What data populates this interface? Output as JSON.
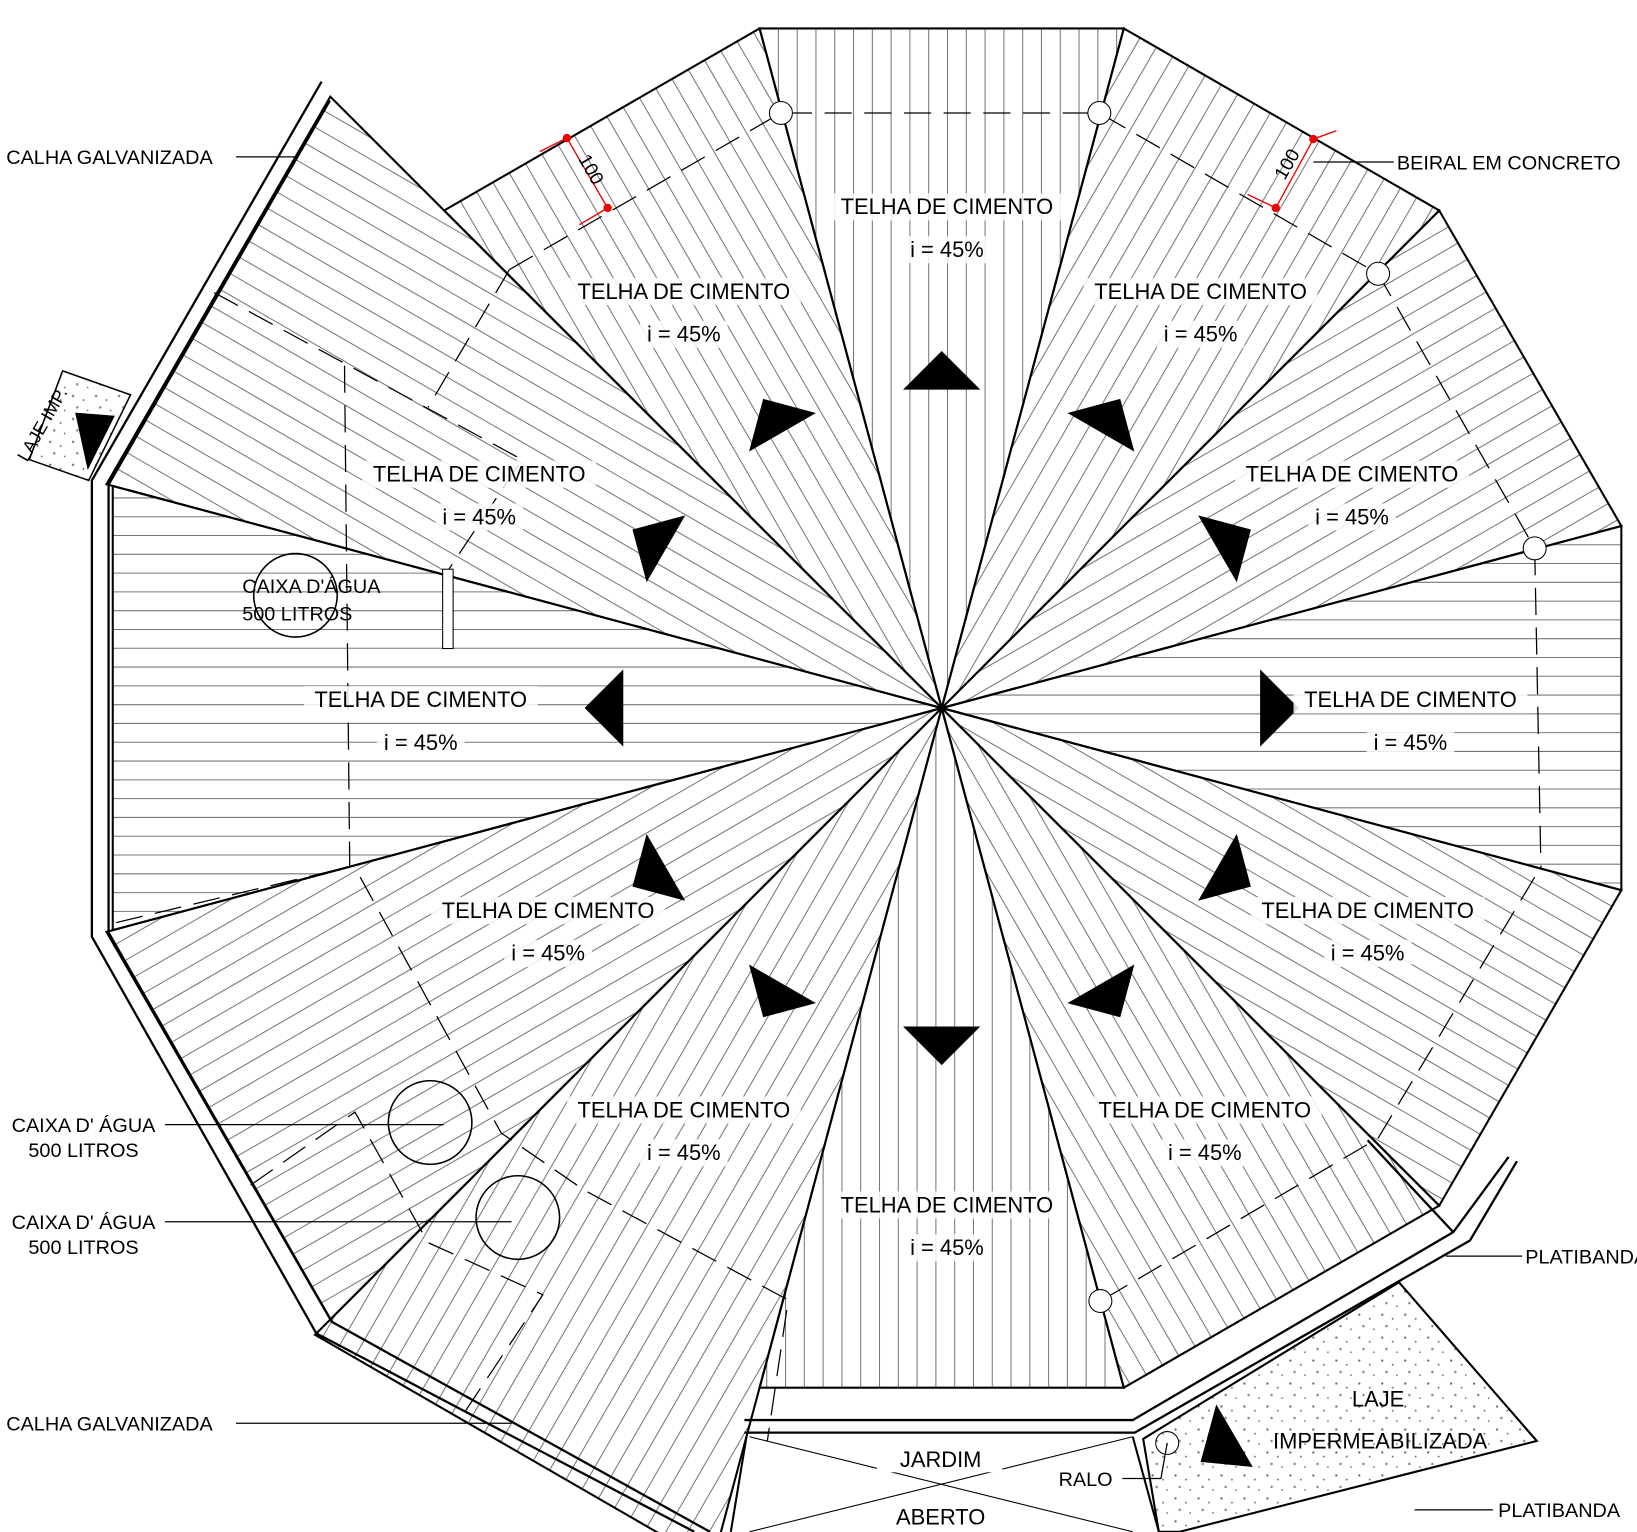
{
  "roof_panels": [
    {
      "material": "TELHA DE CIMENTO",
      "slope": "i = 45%"
    },
    {
      "material": "TELHA DE CIMENTO",
      "slope": "i = 45%"
    },
    {
      "material": "TELHA DE CIMENTO",
      "slope": "i = 45%"
    },
    {
      "material": "TELHA DE CIMENTO",
      "slope": "i = 45%"
    },
    {
      "material": "TELHA DE CIMENTO",
      "slope": "i = 45%"
    },
    {
      "material": "TELHA DE CIMENTO",
      "slope": "i = 45%"
    },
    {
      "material": "TELHA DE CIMENTO",
      "slope": "i = 45%"
    },
    {
      "material": "TELHA DE CIMENTO",
      "slope": "i = 45%"
    },
    {
      "material": "TELHA DE CIMENTO",
      "slope": "i = 45%"
    },
    {
      "material": "TELHA DE CIMENTO",
      "slope": "i = 45%"
    },
    {
      "material": "TELHA DE CIMENTO",
      "slope": "i = 45%"
    },
    {
      "material": "TELHA DE CIMENTO",
      "slope": "i = 45%"
    }
  ],
  "callouts": {
    "calha_top": "CALHA GALVANIZADA",
    "beiral": "BEIRAL EM CONCRETO",
    "laje_imp": "LAJE IMP.",
    "caixa_1": {
      "label": "CAIXA D' ÁGUA",
      "capacity": "500 LITROS"
    },
    "caixa_2": {
      "label": "CAIXA D' ÁGUA",
      "capacity": "500 LITROS"
    },
    "calha_bottom": "CALHA GALVANIZADA",
    "platibanda_1": "PLATIBANDA",
    "platibanda_2": "PLATIBANDA",
    "ralo": "RALO"
  },
  "water_tank": {
    "label": "CAIXA D'ÁGUA",
    "capacity": "500 LITROS"
  },
  "garden": {
    "line1": "JARDIM",
    "line2": "ABERTO"
  },
  "slab": {
    "line1": "LAJE",
    "line2": "IMPERMEABILIZADA"
  },
  "dimensions": [
    "100",
    "100"
  ]
}
